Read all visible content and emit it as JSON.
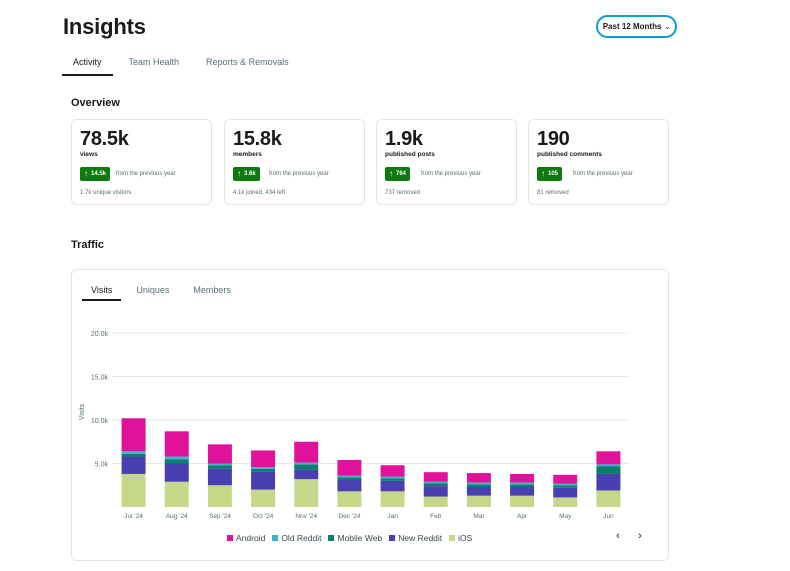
{
  "header": {
    "title": "Insights",
    "range_label": "Past 12 Months",
    "tabs": [
      "Activity",
      "Team Health",
      "Reports & Removals"
    ]
  },
  "overview": {
    "title": "Overview",
    "cards": [
      {
        "value": "78.5k",
        "label": "views",
        "badge": "14.5k",
        "from": "from the previous year",
        "note": "1.7k unique visitors"
      },
      {
        "value": "15.8k",
        "label": "members",
        "badge": "3.6k",
        "from": "from the previous year",
        "note": "4.1k joined, 434 left"
      },
      {
        "value": "1.9k",
        "label": "published posts",
        "badge": "764",
        "from": "from the previous year",
        "note": "737 removed"
      },
      {
        "value": "190",
        "label": "published comments",
        "badge": "105",
        "from": "from the previous year",
        "note": "81 removed"
      }
    ]
  },
  "traffic": {
    "title": "Traffic",
    "tabs": [
      "Visits",
      "Uniques",
      "Members"
    ],
    "prev_glyph": "‹",
    "next_glyph": "›"
  },
  "colors": {
    "accent": "#0a9ed1",
    "badge_green": "#0e7a0d"
  },
  "chart_data": {
    "type": "bar",
    "stacked": true,
    "ylabel": "Visits",
    "ylim": [
      0,
      20000
    ],
    "yticks": [
      5000,
      10000,
      15000,
      20000
    ],
    "ytick_labels": [
      "5.0k",
      "10.0k",
      "15.0k",
      "20.0k"
    ],
    "grid": true,
    "legend_position": "bottom",
    "categories": [
      "Jul '24",
      "Aug '24",
      "Sep '24",
      "Oct '24",
      "Nov '24",
      "Dec '24",
      "Jan",
      "Feb",
      "Mar",
      "Apr",
      "May",
      "Jun"
    ],
    "series": [
      {
        "name": "iOS",
        "color": "#c5d88a",
        "values": [
          3800,
          2900,
          2500,
          2000,
          3200,
          1800,
          1800,
          1200,
          1300,
          1300,
          1100,
          1900
        ]
      },
      {
        "name": "New Reddit",
        "color": "#4a3fb0",
        "values": [
          2000,
          2100,
          1900,
          2100,
          1100,
          1300,
          1200,
          1200,
          1000,
          1000,
          1100,
          1900
        ]
      },
      {
        "name": "Mobile Web",
        "color": "#0b7d6d",
        "values": [
          300,
          500,
          400,
          300,
          600,
          300,
          300,
          300,
          300,
          300,
          300,
          900
        ]
      },
      {
        "name": "Old Reddit",
        "color": "#3fb3cf",
        "values": [
          300,
          300,
          200,
          200,
          200,
          200,
          200,
          200,
          200,
          200,
          200,
          200
        ]
      },
      {
        "name": "Android",
        "color": "#e0119b",
        "values": [
          3800,
          2900,
          2200,
          1900,
          2400,
          1800,
          1300,
          1100,
          1100,
          1000,
          1000,
          1500
        ]
      }
    ],
    "legend_order": [
      "Android",
      "Old Reddit",
      "Mobile Web",
      "New Reddit",
      "iOS"
    ]
  }
}
